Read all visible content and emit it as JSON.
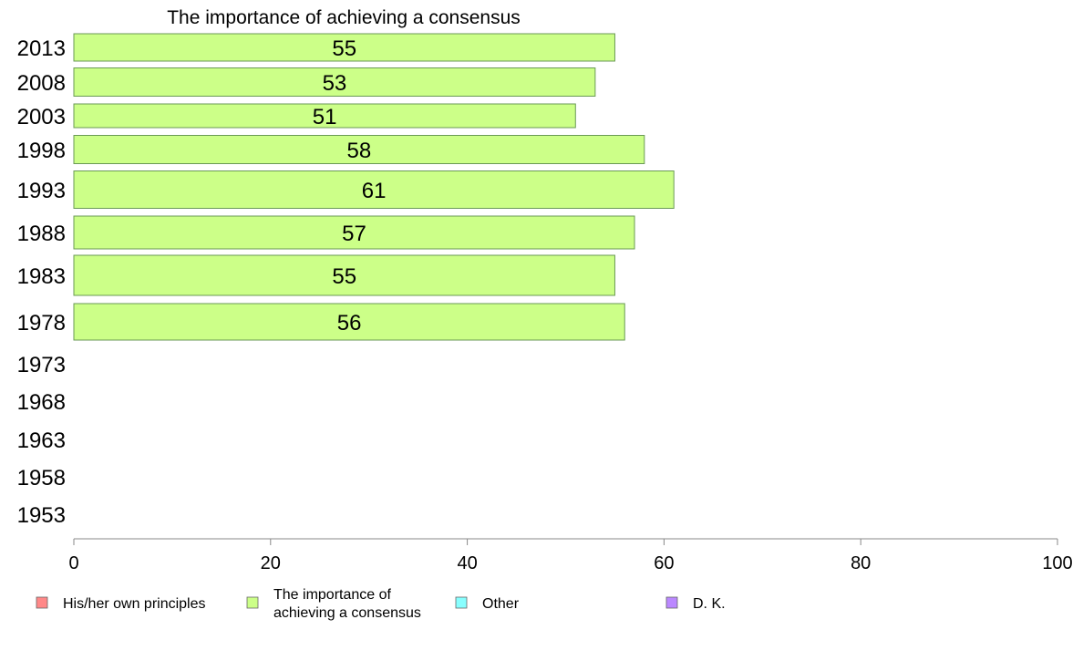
{
  "chart_data": {
    "type": "bar",
    "orientation": "horizontal",
    "title": "The importance of achieving a consensus",
    "categories": [
      "2013",
      "2008",
      "2003",
      "1998",
      "1993",
      "1988",
      "1983",
      "1978",
      "1973",
      "1968",
      "1963",
      "1958",
      "1953"
    ],
    "series": [
      {
        "name": "The importance of achieving a consensus",
        "color": "#ccff88",
        "values": [
          55,
          53,
          51,
          58,
          61,
          57,
          55,
          56,
          null,
          null,
          null,
          null,
          null
        ]
      }
    ],
    "xlim": [
      0,
      100
    ],
    "xticks": [
      0,
      20,
      40,
      60,
      80,
      100
    ],
    "grid": false,
    "legend_position": "bottom",
    "legend": [
      {
        "label_lines": [
          "His/her own principles"
        ],
        "color": "#ff8888"
      },
      {
        "label_lines": [
          "The importance of",
          "achieving a consensus"
        ],
        "color": "#ccff88"
      },
      {
        "label_lines": [
          "Other"
        ],
        "color": "#88ffff"
      },
      {
        "label_lines": [
          "D. K."
        ],
        "color": "#bb88ff"
      }
    ]
  }
}
